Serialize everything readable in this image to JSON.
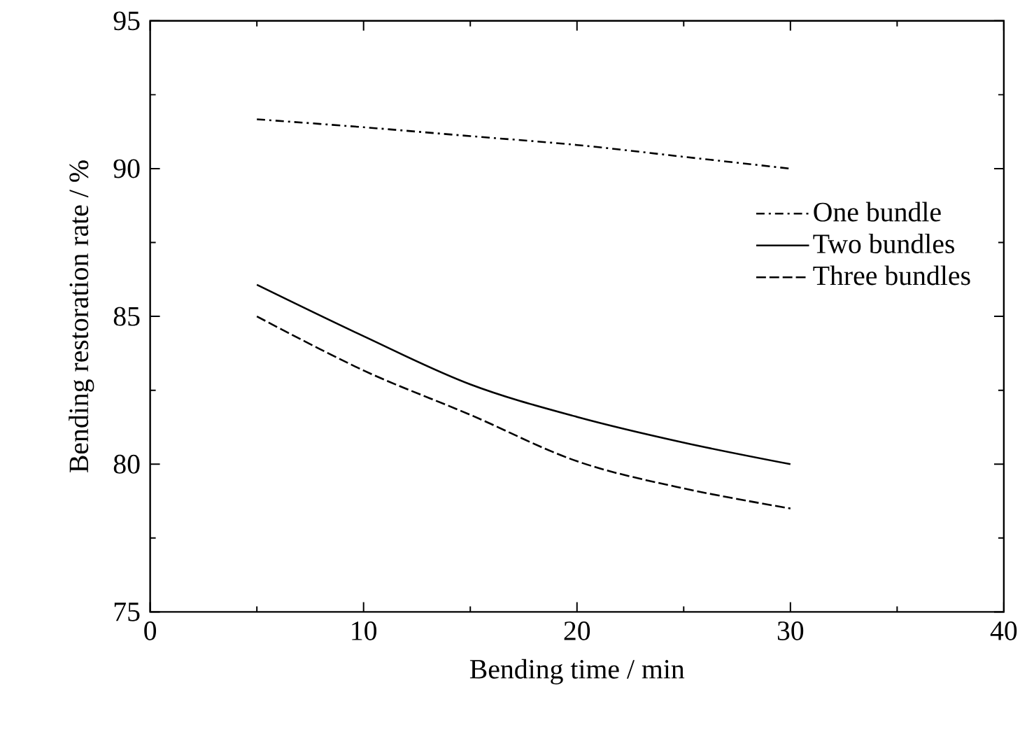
{
  "chart_data": {
    "type": "line",
    "xlabel": "Bending time / min",
    "ylabel": "Bending restoration rate / %",
    "xlim": [
      0,
      40
    ],
    "ylim": [
      75,
      95
    ],
    "xticks": [
      0,
      10,
      20,
      30,
      40
    ],
    "yticks": [
      75,
      80,
      85,
      90,
      95
    ],
    "grid": false,
    "legend": "right",
    "marker": "none",
    "series": [
      {
        "name": "One bundle",
        "color": "#000000",
        "line_style": "dashdot",
        "x": [
          5,
          10,
          15,
          20,
          25,
          30
        ],
        "values": [
          91.67,
          91.4,
          91.1,
          90.8,
          90.4,
          90.0
        ]
      },
      {
        "name": "Two bundles",
        "color": "#000000",
        "line_style": "solid",
        "x": [
          5,
          10,
          15,
          20,
          25,
          30
        ],
        "values": [
          86.07,
          84.33,
          82.7,
          81.6,
          80.73,
          80.0
        ]
      },
      {
        "name": "Three bundles",
        "color": "#000000",
        "line_style": "dashed",
        "x": [
          5,
          10,
          15,
          20,
          25,
          30
        ],
        "values": [
          85.0,
          83.17,
          81.67,
          80.1,
          79.18,
          78.5
        ]
      }
    ]
  }
}
